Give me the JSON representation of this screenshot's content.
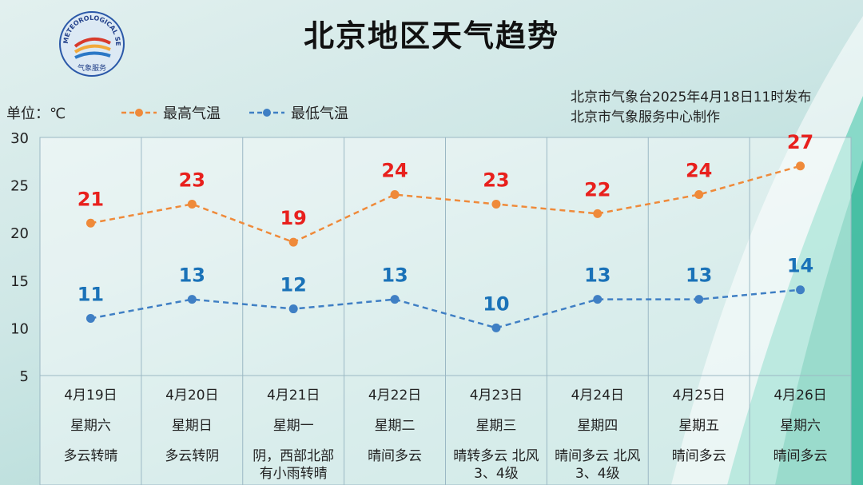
{
  "title": "北京地区天气趋势",
  "unit_label": "单位：℃",
  "issuer_line1": "北京市气象台2025年4月18日11时发布",
  "issuer_line2": "北京市气象服务中心制作",
  "logo": {
    "text": "METEOROLOGICAL SERVICE",
    "subtext": "气象服务"
  },
  "colors": {
    "high": "#ef8a3a",
    "low": "#3f7fc4",
    "high_label": "#e8201d",
    "low_label": "#1a72b8"
  },
  "chart_data": {
    "type": "line",
    "title": "北京地区天气趋势",
    "ylim": [
      5,
      30
    ],
    "yticks": [
      5,
      10,
      15,
      20,
      25,
      30
    ],
    "categories": [
      "4月19日",
      "4月20日",
      "4月21日",
      "4月22日",
      "4月23日",
      "4月24日",
      "4月25日",
      "4月26日"
    ],
    "series": [
      {
        "name": "最高气温",
        "values": [
          21,
          23,
          19,
          24,
          23,
          22,
          24,
          27
        ]
      },
      {
        "name": "最低气温",
        "values": [
          11,
          13,
          12,
          13,
          10,
          13,
          13,
          14
        ]
      }
    ],
    "weekdays": [
      "星期六",
      "星期日",
      "星期一",
      "星期二",
      "星期三",
      "星期四",
      "星期五",
      "星期六"
    ],
    "weather": [
      [
        "多云转晴"
      ],
      [
        "多云转阴"
      ],
      [
        "阴，西部北部",
        "有小雨转晴"
      ],
      [
        "晴间多云"
      ],
      [
        "晴转多云 北风",
        "3、4级"
      ],
      [
        "晴间多云 北风",
        "3、4级"
      ],
      [
        "晴间多云"
      ],
      [
        "晴间多云"
      ]
    ]
  }
}
